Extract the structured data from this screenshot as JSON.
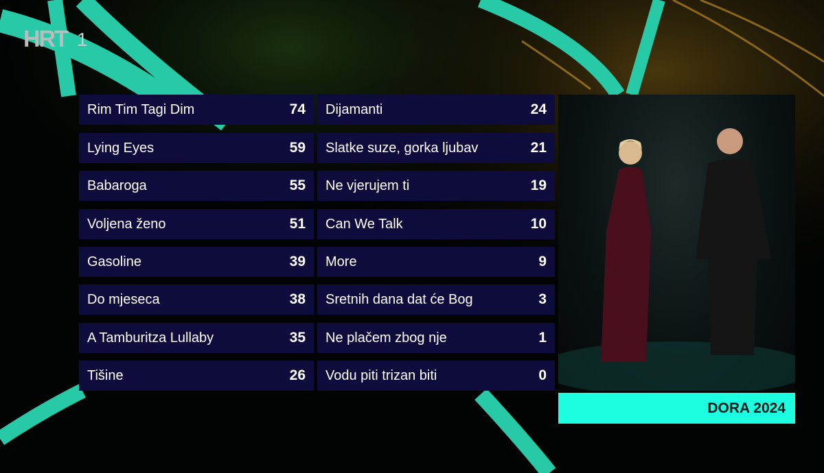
{
  "channel": {
    "logo": "HRT",
    "number": "1"
  },
  "scoreboard": {
    "left": [
      {
        "song": "Rim Tim Tagi Dim",
        "points": "74"
      },
      {
        "song": "Lying Eyes",
        "points": "59"
      },
      {
        "song": "Babaroga",
        "points": "55"
      },
      {
        "song": "Voljena ženo",
        "points": "51"
      },
      {
        "song": "Gasoline",
        "points": "39"
      },
      {
        "song": "Do mjeseca",
        "points": "38"
      },
      {
        "song": "A Tamburitza Lullaby",
        "points": "35"
      },
      {
        "song": "Tišine",
        "points": "26"
      }
    ],
    "right": [
      {
        "song": "Dijamanti",
        "points": "24"
      },
      {
        "song": "Slatke suze, gorka ljubav",
        "points": "21"
      },
      {
        "song": "Ne vjerujem ti",
        "points": "19"
      },
      {
        "song": "Can We Talk",
        "points": "10"
      },
      {
        "song": "More",
        "points": "9"
      },
      {
        "song": "Sretnih dana dat će Bog",
        "points": "3"
      },
      {
        "song": "Ne plačem zbog nje",
        "points": "1"
      },
      {
        "song": "Vodu piti trizan biti",
        "points": "0"
      }
    ]
  },
  "video": {
    "caption": "DORA 2024"
  },
  "colors": {
    "accent": "#1dfde0",
    "row_bg": "#0d0c3c",
    "logo_red": "#d6473e"
  }
}
